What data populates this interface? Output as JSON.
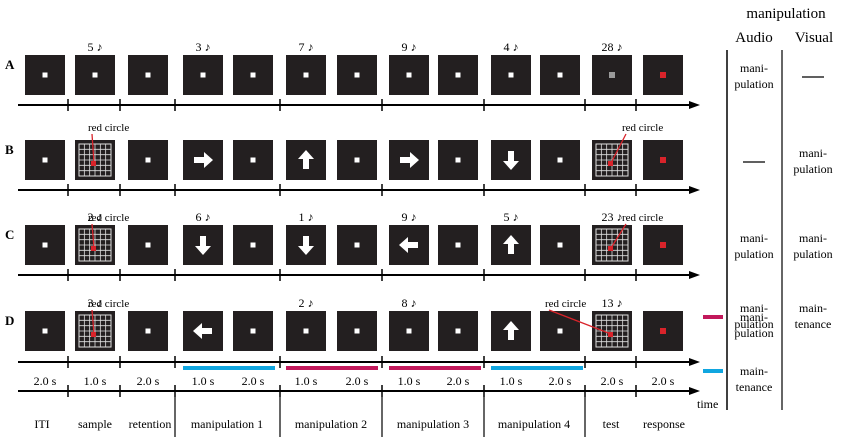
{
  "rows": [
    {
      "label": "A",
      "numbers": [
        {
          "slot": 1,
          "text": "5 ♪"
        },
        {
          "slot": 3,
          "text": "3 ♪"
        },
        {
          "slot": 5,
          "text": "7 ♪"
        },
        {
          "slot": 7,
          "text": "9 ♪"
        },
        {
          "slot": 9,
          "text": "4 ♪"
        },
        {
          "slot": 11,
          "text": "28 ♪"
        }
      ],
      "boxes": [
        "dot",
        "dot",
        "dot",
        "dot",
        "dot",
        "dot",
        "dot",
        "dot",
        "dot",
        "dot",
        "dot",
        "gray",
        "red"
      ],
      "red_circle_labels": []
    },
    {
      "label": "B",
      "numbers": [],
      "boxes": [
        "dot",
        "grid",
        "dot",
        "right",
        "dot",
        "up",
        "dot",
        "right",
        "dot",
        "down",
        "dot",
        "grid",
        "red"
      ],
      "red_circle_labels": [
        {
          "slot": 1,
          "text": "red circle"
        },
        {
          "slot": 11,
          "text": "red circle"
        }
      ]
    },
    {
      "label": "C",
      "numbers": [
        {
          "slot": 1,
          "text": "2 ♪"
        },
        {
          "slot": 3,
          "text": "6 ♪"
        },
        {
          "slot": 5,
          "text": "1 ♪"
        },
        {
          "slot": 7,
          "text": "9 ♪"
        },
        {
          "slot": 9,
          "text": "5 ♪"
        },
        {
          "slot": 11,
          "text": "23 ♪"
        }
      ],
      "boxes": [
        "dot",
        "grid",
        "dot",
        "down",
        "dot",
        "down",
        "dot",
        "left",
        "dot",
        "up",
        "dot",
        "grid",
        "red"
      ],
      "red_circle_labels": [
        {
          "slot": 1,
          "text": "red circle"
        },
        {
          "slot": 11,
          "text": "red circle"
        }
      ]
    },
    {
      "label": "D",
      "numbers": [
        {
          "slot": 1,
          "text": "3 ♪"
        },
        {
          "slot": 5,
          "text": "2 ♪"
        },
        {
          "slot": 7,
          "text": "8 ♪"
        },
        {
          "slot": 11,
          "text": "13 ♪"
        }
      ],
      "boxes": [
        "dot",
        "grid",
        "dot",
        "left",
        "dot",
        "dot",
        "dot",
        "dot",
        "dot",
        "up",
        "dot",
        "grid",
        "red"
      ],
      "red_circle_labels": [
        {
          "slot": 1,
          "text": "red circle"
        },
        {
          "slot": 10,
          "text": "red circle"
        }
      ],
      "bars": [
        {
          "phase": 0,
          "color": "blue"
        },
        {
          "phase": 1,
          "color": "magenta"
        },
        {
          "phase": 2,
          "color": "magenta"
        },
        {
          "phase": 3,
          "color": "blue"
        }
      ]
    }
  ],
  "durations": [
    "2.0 s",
    "1.0 s",
    "2.0 s",
    "1.0 s",
    "2.0 s",
    "1.0 s",
    "2.0 s",
    "1.0 s",
    "2.0 s",
    "1.0 s",
    "2.0 s",
    "2.0 s",
    "2.0 s"
  ],
  "phases": [
    "ITI",
    "sample",
    "retention",
    "manipulation 1",
    "manipulation 2",
    "manipulation 3",
    "manipulation 4",
    "test",
    "response"
  ],
  "time_label": "time",
  "table": {
    "title": "manipulation",
    "headers": [
      "Audio",
      "Visual"
    ],
    "rows": [
      {
        "audio": [
          "mani-",
          "pulation"
        ],
        "visual": [
          "—"
        ]
      },
      {
        "audio": [
          "—"
        ],
        "visual": [
          "mani-",
          "pulation"
        ]
      },
      {
        "audio": [
          "mani-",
          "pulation"
        ],
        "visual": [
          "mani-",
          "pulation"
        ]
      },
      {
        "audio": [
          "mani-",
          "pulation"
        ],
        "visual": [
          "main-",
          "tenance"
        ]
      }
    ]
  },
  "legend": [
    {
      "color": "magenta",
      "lines": [
        "mani-",
        "pulation"
      ]
    },
    {
      "color": "blue",
      "lines": [
        "main-",
        "tenance"
      ]
    }
  ],
  "colors": {
    "box": "#231f20",
    "dot": "#ffffff",
    "gray_dot": "#9a9a9a",
    "red": "#d8232a",
    "blue": "#10a6e0",
    "magenta": "#c2185b",
    "grid": "#e0e0e0",
    "axis": "#000000"
  }
}
